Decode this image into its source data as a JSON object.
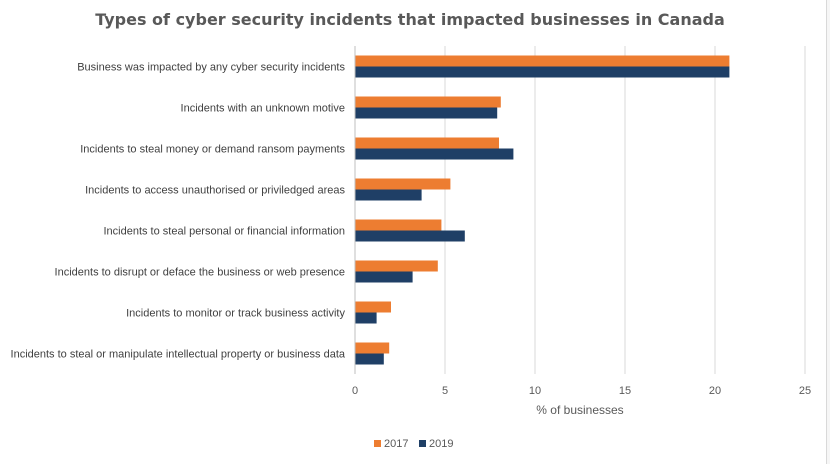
{
  "chart_data": {
    "type": "bar",
    "orientation": "horizontal",
    "title": "Types of cyber security incidents that impacted businesses in Canada",
    "xlabel": "% of businesses",
    "ylabel": "",
    "xlim": [
      0,
      25
    ],
    "xticks": [
      0,
      5,
      10,
      15,
      20,
      25
    ],
    "grid": true,
    "legend_position": "bottom",
    "categories": [
      "Business was impacted by any cyber security incidents",
      "Incidents with an unknown motive",
      "Incidents to steal money or demand ransom payments",
      "Incidents to access unauthorised or priviledged areas",
      "Incidents to steal personal or financial information",
      "Incidents to disrupt or deface the business or web presence",
      "Incidents to monitor or track business activity",
      "Incidents to steal or manipulate intellectual property or business data"
    ],
    "series": [
      {
        "name": "2017",
        "color": "#ed7d31",
        "values": [
          20.8,
          8.1,
          8.0,
          5.3,
          4.8,
          4.6,
          2.0,
          1.9
        ]
      },
      {
        "name": "2019",
        "color": "#1f3f66",
        "values": [
          20.8,
          7.9,
          8.8,
          3.7,
          6.1,
          3.2,
          1.2,
          1.6
        ]
      }
    ]
  }
}
